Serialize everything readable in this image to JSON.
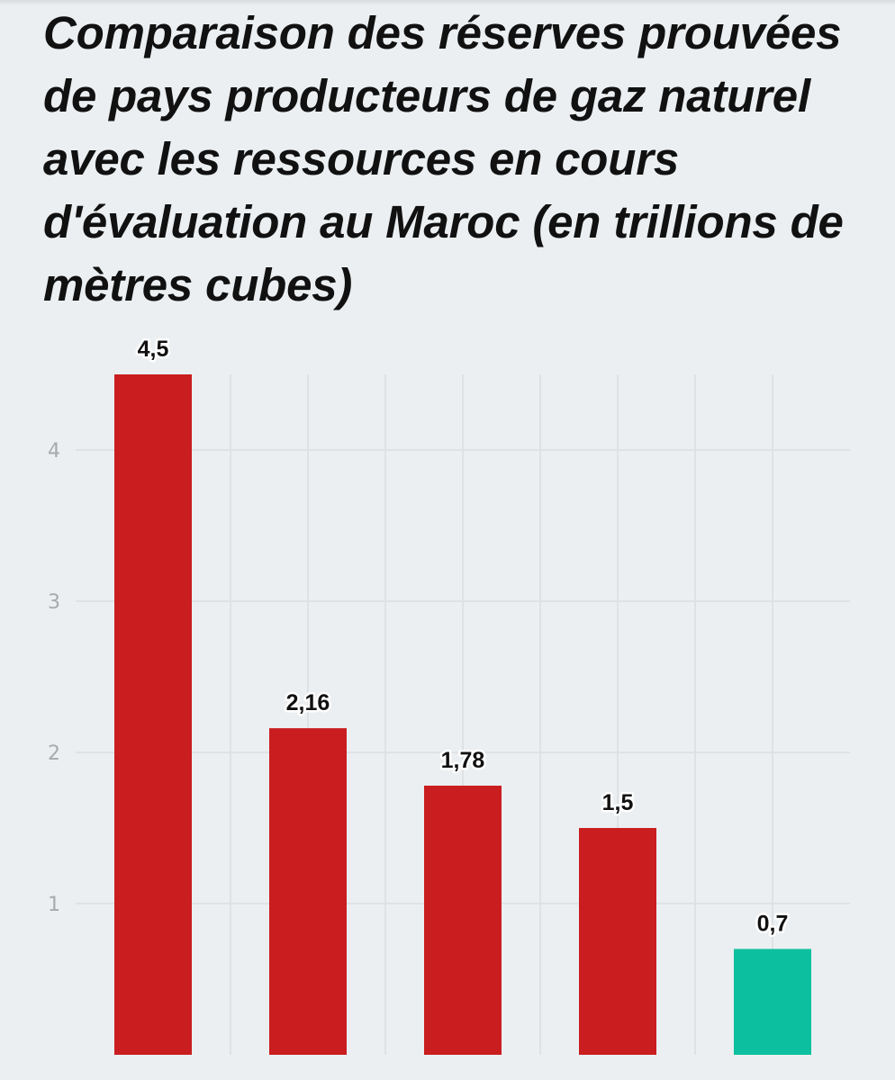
{
  "title": "Comparaison des réserves prouvées de pays producteurs de gaz naturel avec les ressources en cours d'évaluation au Maroc (en trillions de mètres cubes)",
  "chart_data": {
    "type": "bar",
    "title": "Comparaison des réserves prouvées de pays producteurs de gaz naturel avec les ressources en cours d'évaluation au Maroc (en trillions de mètres cubes)",
    "xlabel": "",
    "ylabel": "",
    "categories": [
      "",
      "",
      "",
      "",
      ""
    ],
    "values": [
      4.5,
      2.16,
      1.78,
      1.5,
      0.7
    ],
    "value_labels": [
      "4,5",
      "2,16",
      "1,78",
      "1,5",
      "0,7"
    ],
    "bar_colors": [
      "#c91d1f",
      "#c91d1f",
      "#c91d1f",
      "#c91d1f",
      "#0cbf9f"
    ],
    "yticks": [
      1,
      2,
      3,
      4
    ],
    "ytick_labels": [
      "1",
      "2",
      "3",
      "4"
    ],
    "ylim": [
      0,
      4.5
    ],
    "grid": true,
    "legend": "none"
  }
}
